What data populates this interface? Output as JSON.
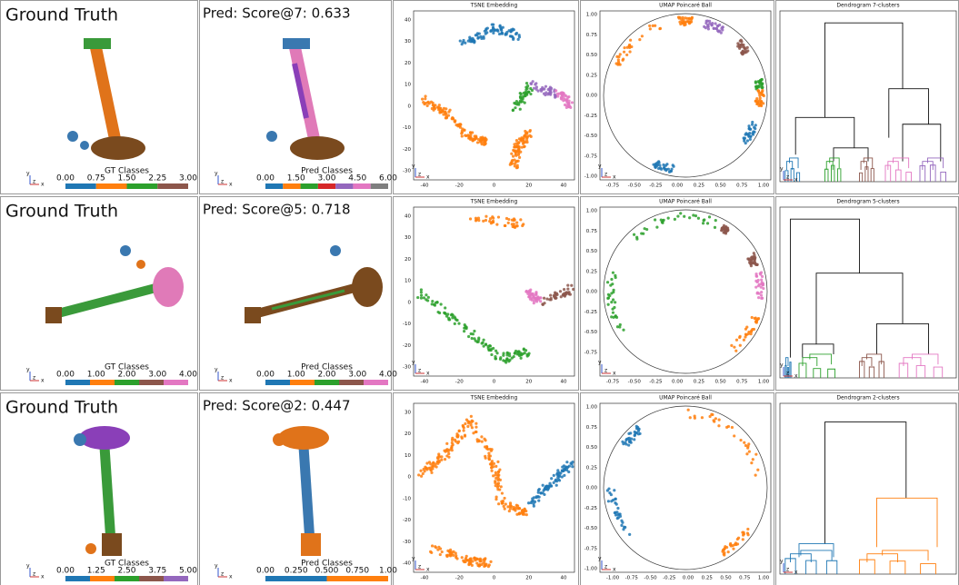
{
  "triad": {
    "y": "y",
    "z": "z",
    "x": "x"
  },
  "rows": [
    {
      "gt_title": "Ground Truth",
      "pred_title": "Pred: Score@7: 0.633",
      "gt_colorbar": {
        "label": "GT Classes",
        "ticks": [
          "0.00",
          "0.75",
          "1.50",
          "2.25",
          "3.00"
        ],
        "colors": [
          "#1f77b4",
          "#ff7f0e",
          "#2ca02c",
          "#8c564b"
        ]
      },
      "pred_colorbar": {
        "label": "Pred Classes",
        "ticks": [
          "0.00",
          "1.50",
          "3.00",
          "4.50",
          "6.00"
        ],
        "colors": [
          "#1f77b4",
          "#ff7f0e",
          "#2ca02c",
          "#d62728",
          "#9467bd",
          "#e377c2",
          "#7f7f7f"
        ]
      },
      "tsne": {
        "title": "TSNE Embedding",
        "xticks": [
          "-40",
          "-20",
          "0",
          "20",
          "40"
        ],
        "yticks": [
          "40",
          "30",
          "20",
          "10",
          "0",
          "-10",
          "-20",
          "-30"
        ]
      },
      "umap": {
        "title": "UMAP Poincaré Ball",
        "xticks": [
          "-0.75",
          "-0.50",
          "-0.25",
          "0.00",
          "0.25",
          "0.50",
          "0.75",
          "1.00"
        ],
        "yticks": [
          "1.00",
          "0.75",
          "0.50",
          "0.25",
          "0.00",
          "-0.25",
          "-0.50",
          "-0.75",
          "-1.00"
        ]
      },
      "dendrogram": {
        "title": "Dendrogram 7-clusters"
      }
    },
    {
      "gt_title": "Ground Truth",
      "pred_title": "Pred: Score@5: 0.718",
      "gt_colorbar": {
        "label": "GT Classes",
        "ticks": [
          "0.00",
          "1.00",
          "2.00",
          "3.00",
          "4.00"
        ],
        "colors": [
          "#1f77b4",
          "#ff7f0e",
          "#2ca02c",
          "#8c564b",
          "#e377c2"
        ]
      },
      "pred_colorbar": {
        "label": "Pred Classes",
        "ticks": [
          "0.00",
          "1.00",
          "2.00",
          "3.00",
          "4.00"
        ],
        "colors": [
          "#1f77b4",
          "#ff7f0e",
          "#2ca02c",
          "#8c564b",
          "#e377c2"
        ]
      },
      "tsne": {
        "title": "TSNE Embedding",
        "xticks": [
          "-40",
          "-20",
          "0",
          "20",
          "40"
        ],
        "yticks": [
          "40",
          "30",
          "20",
          "10",
          "0",
          "-10",
          "-20",
          "-30"
        ]
      },
      "umap": {
        "title": "UMAP Poincaré Ball",
        "xticks": [
          "-0.75",
          "-0.50",
          "-0.25",
          "0.00",
          "0.25",
          "0.50",
          "0.75",
          "1.00"
        ],
        "yticks": [
          "1.00",
          "0.75",
          "0.50",
          "0.25",
          "0.00",
          "-0.25",
          "-0.50",
          "-0.75"
        ]
      },
      "dendrogram": {
        "title": "Dendrogram 5-clusters"
      }
    },
    {
      "gt_title": "Ground Truth",
      "pred_title": "Pred: Score@2: 0.447",
      "gt_colorbar": {
        "label": "GT Classes",
        "ticks": [
          "0.00",
          "1.25",
          "2.50",
          "3.75",
          "5.00"
        ],
        "colors": [
          "#1f77b4",
          "#ff7f0e",
          "#2ca02c",
          "#8c564b",
          "#9467bd"
        ]
      },
      "pred_colorbar": {
        "label": "Pred Classes",
        "ticks": [
          "0.00",
          "0.250",
          "0.500",
          "0.750",
          "1.00"
        ],
        "colors": [
          "#1f77b4",
          "#ff7f0e"
        ]
      },
      "tsne": {
        "title": "TSNE Embedding",
        "xticks": [
          "-40",
          "-20",
          "0",
          "20",
          "40"
        ],
        "yticks": [
          "30",
          "20",
          "10",
          "0",
          "-10",
          "-20",
          "-30",
          "-40"
        ]
      },
      "umap": {
        "title": "UMAP Poincaré Ball",
        "xticks": [
          "-1.00",
          "-0.75",
          "-0.50",
          "-0.25",
          "0.00",
          "0.25",
          "0.50",
          "0.75",
          "1.00"
        ],
        "yticks": [
          "1.00",
          "0.75",
          "0.50",
          "0.25",
          "0.00",
          "-0.25",
          "-0.50",
          "-0.75",
          "-1.00"
        ]
      },
      "dendrogram": {
        "title": "Dendrogram 2-clusters"
      }
    }
  ]
}
